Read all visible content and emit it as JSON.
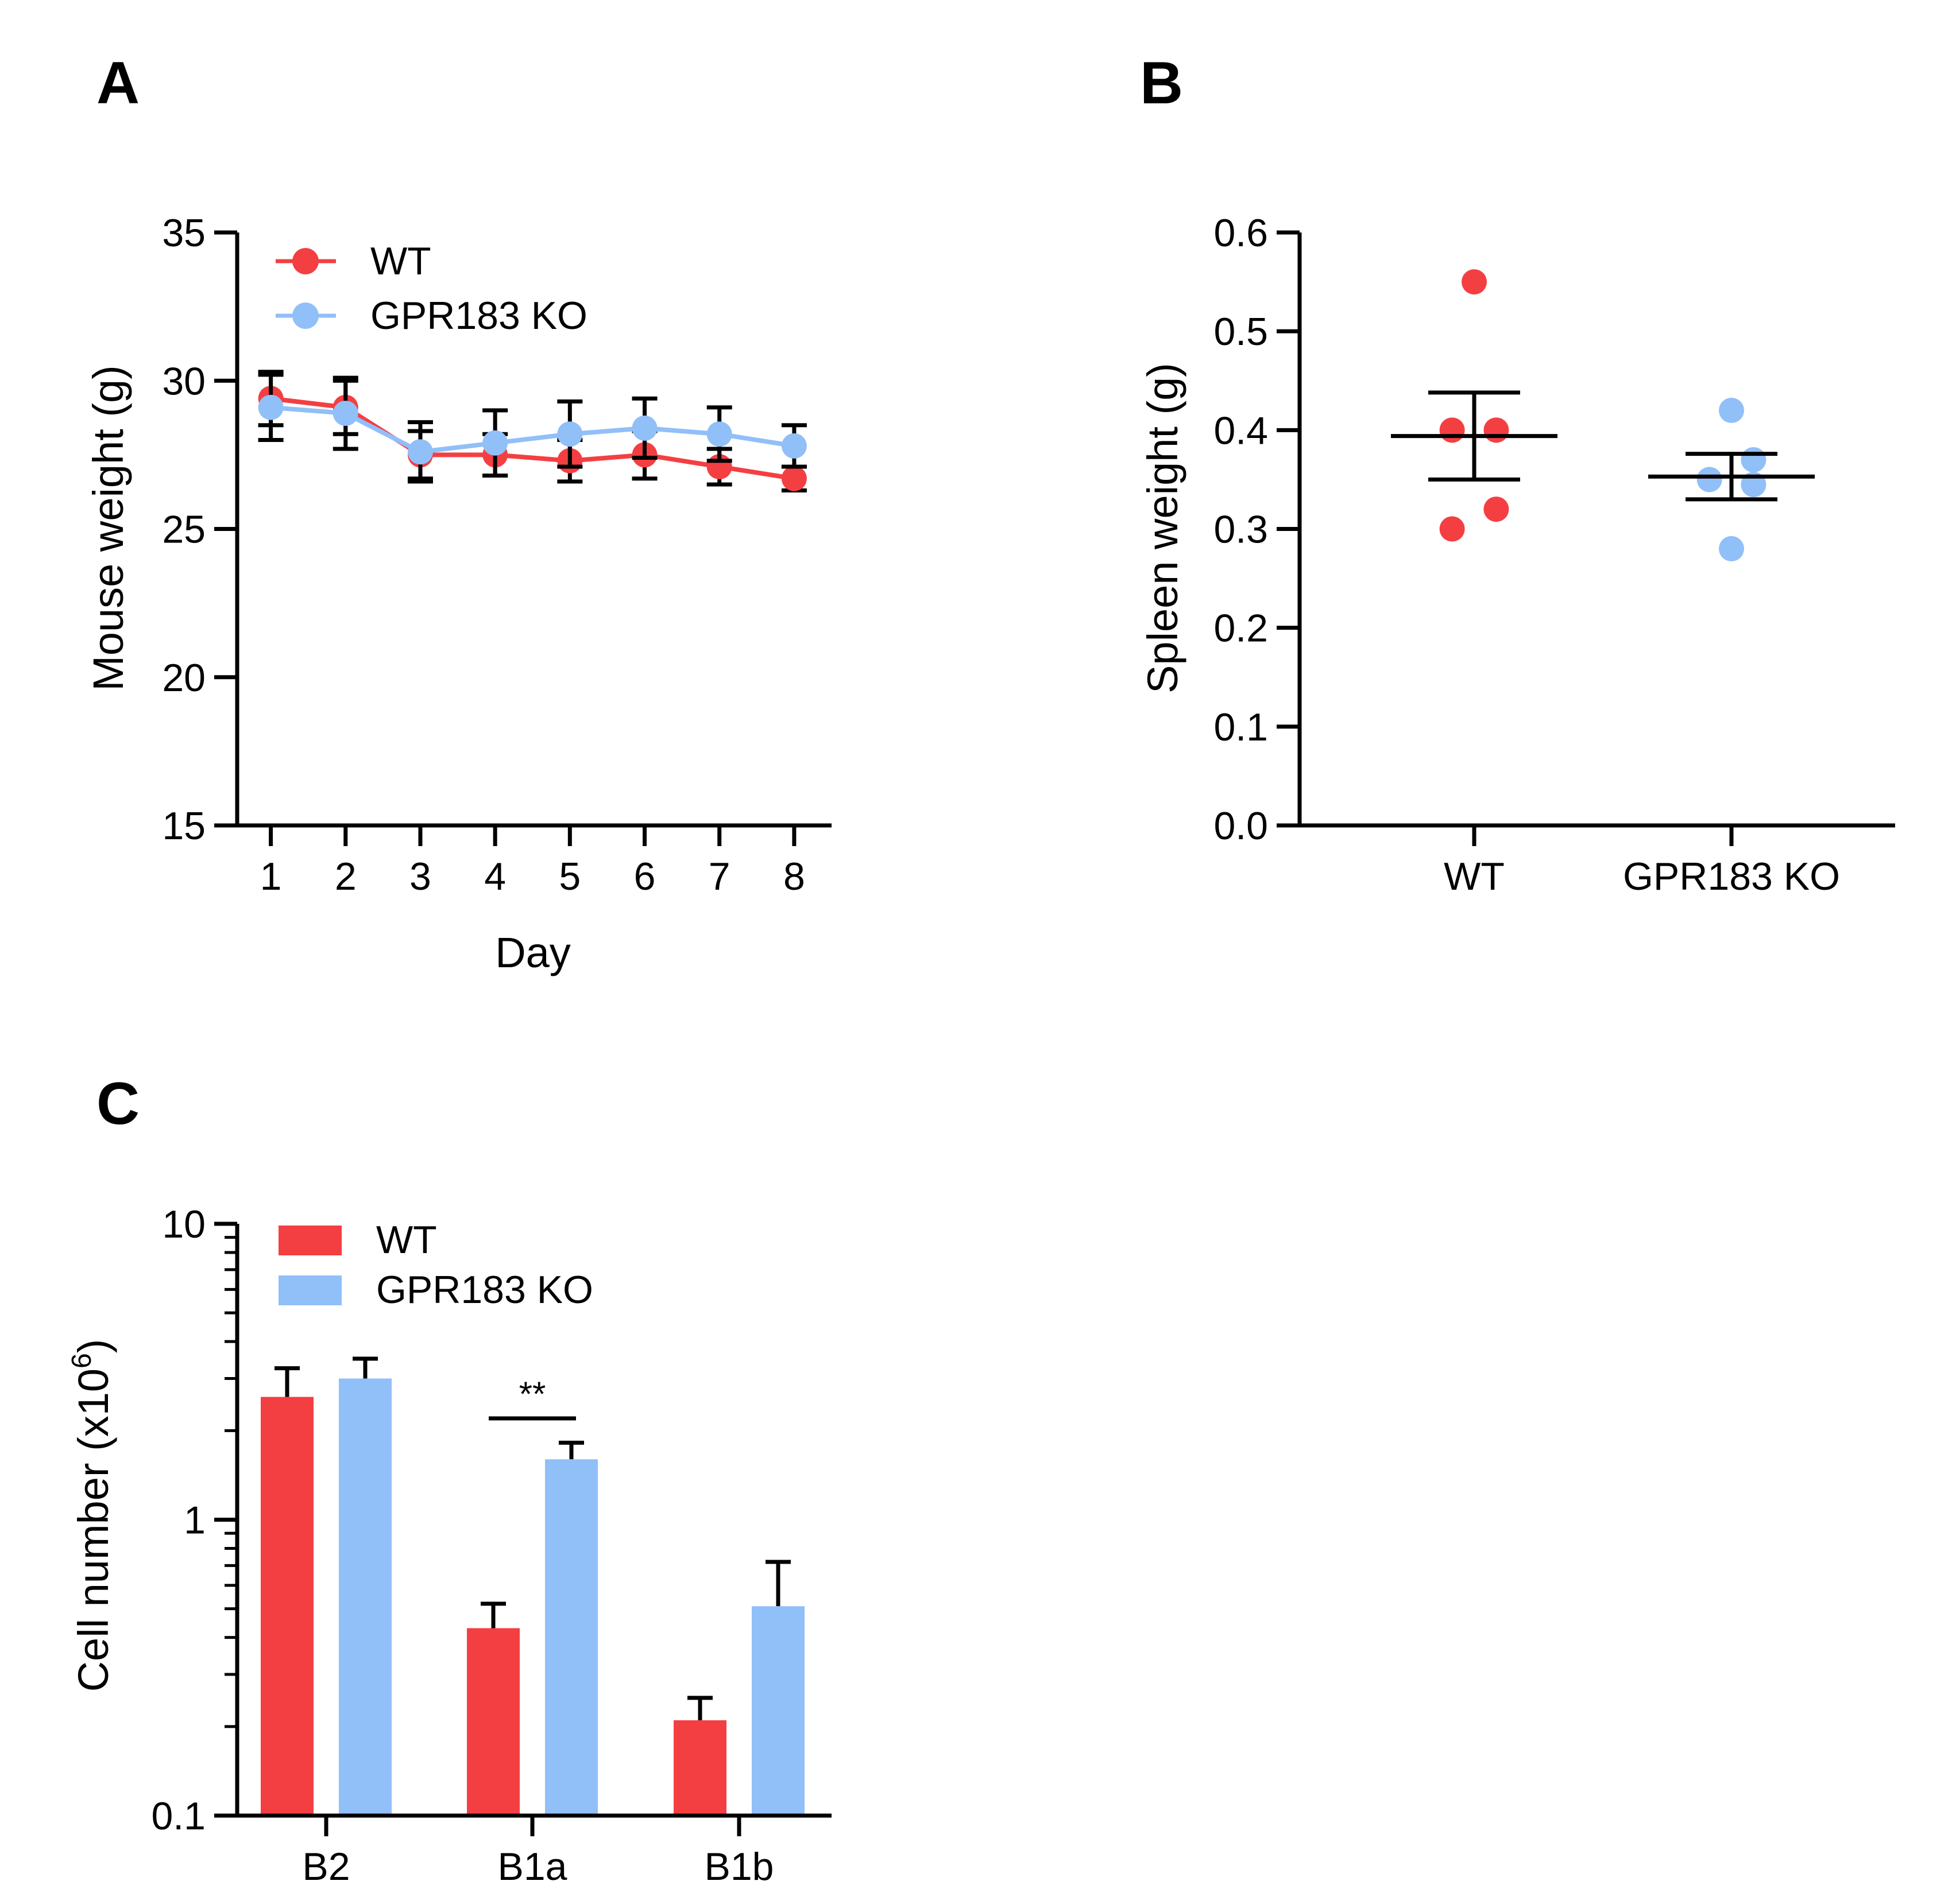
{
  "figure": {
    "colors": {
      "wt": "#f43f42",
      "ko": "#91bff8",
      "axis": "#000000"
    }
  },
  "panels": [
    {
      "letter": "A",
      "chart_data": {
        "type": "line",
        "xlabel": "Day",
        "ylabel": "Mouse weight (g)",
        "x": [
          1,
          2,
          3,
          4,
          5,
          6,
          7,
          8
        ],
        "xlim": [
          0.55,
          8.5
        ],
        "ylim": [
          15,
          35
        ],
        "yticks": [
          15,
          20,
          25,
          30,
          35
        ],
        "grid": false,
        "legend": "top-left",
        "series": [
          {
            "name": "WT",
            "color": "#f43f42",
            "values": [
              29.4,
              29.1,
              27.5,
              27.5,
              27.3,
              27.5,
              27.1,
              26.7
            ],
            "sem": [
              0.9,
              0.9,
              0.8,
              0.7,
              0.7,
              0.8,
              0.6,
              0.4
            ]
          },
          {
            "name": "GPR183 KO",
            "color": "#91bff8",
            "values": [
              29.1,
              28.9,
              27.6,
              27.9,
              28.2,
              28.4,
              28.2,
              27.8
            ],
            "sem": [
              1.1,
              1.2,
              1.0,
              1.1,
              1.1,
              1.0,
              0.9,
              0.7
            ]
          }
        ]
      }
    },
    {
      "letter": "B",
      "chart_data": {
        "type": "scatter",
        "ylabel": "Spleen weight (g)",
        "categories": [
          "WT",
          "GPR183 KO"
        ],
        "ylim": [
          0.0,
          0.6
        ],
        "yticks": [
          "0.0",
          "0.1",
          "0.2",
          "0.3",
          "0.4",
          "0.5",
          "0.6"
        ],
        "grid": false,
        "groups": [
          {
            "name": "WT",
            "color": "#f43f42",
            "points": [
              {
                "y": 0.55,
                "offset": 0
              },
              {
                "y": 0.4,
                "offset": -0.12
              },
              {
                "y": 0.4,
                "offset": 0.12
              },
              {
                "y": 0.32,
                "offset": 0.12
              },
              {
                "y": 0.3,
                "offset": -0.12
              }
            ],
            "mean": 0.394,
            "sem": 0.044
          },
          {
            "name": "GPR183 KO",
            "color": "#91bff8",
            "points": [
              {
                "y": 0.42,
                "offset": 0
              },
              {
                "y": 0.37,
                "offset": 0.12
              },
              {
                "y": 0.35,
                "offset": -0.12
              },
              {
                "y": 0.345,
                "offset": 0.12
              },
              {
                "y": 0.28,
                "offset": 0
              }
            ],
            "mean": 0.353,
            "sem": 0.023
          }
        ]
      }
    },
    {
      "letter": "C",
      "chart_data": {
        "type": "bar",
        "ylabel_prefix": "Cell number (x10",
        "ylabel_sup": "6",
        "ylabel_suffix": ")",
        "yscale": "log",
        "ylim": [
          0.1,
          10
        ],
        "yticks": [
          "0.1",
          "1",
          "10"
        ],
        "categories": [
          "B2",
          "B1a",
          "B1b"
        ],
        "grid": false,
        "legend": "top-left",
        "series": [
          {
            "name": "WT",
            "color": "#f43f42",
            "values": [
              2.6,
              0.43,
              0.21
            ],
            "err_upper": [
              3.25,
              0.52,
              0.25
            ]
          },
          {
            "name": "GPR183 KO",
            "color": "#91bff8",
            "values": [
              3.0,
              1.6,
              0.51
            ],
            "err_upper": [
              3.5,
              1.82,
              0.72
            ]
          }
        ],
        "annotations": [
          {
            "text": "**",
            "category": "B1a",
            "y": 2.2
          }
        ]
      }
    }
  ]
}
